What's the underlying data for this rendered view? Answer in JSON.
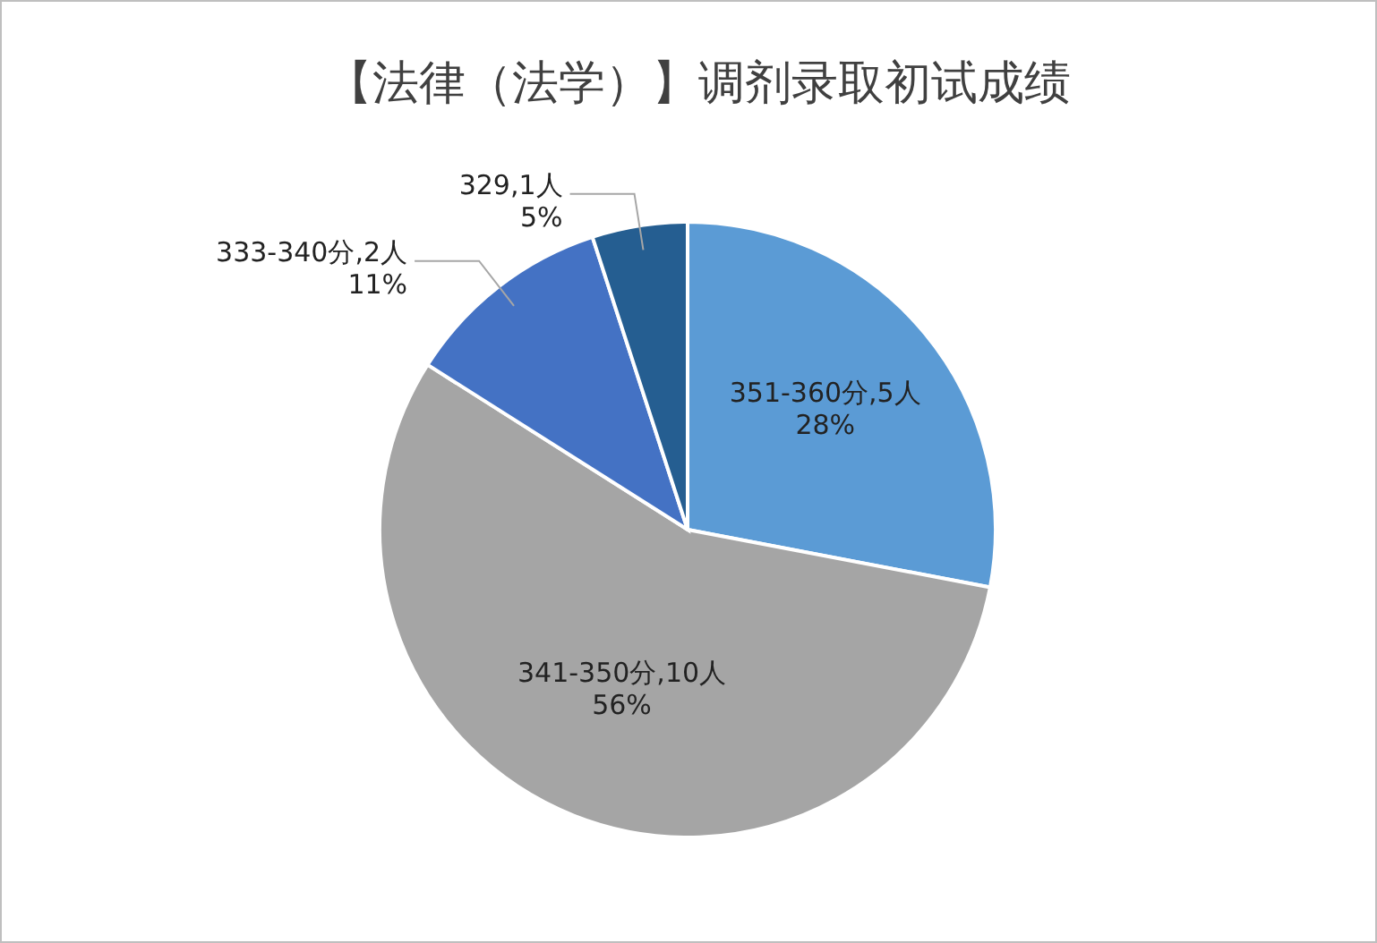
{
  "chart_data": {
    "type": "pie",
    "title": "【法律（法学）】调剂录取初试成绩",
    "categories": [
      "351-360分,5人",
      "341-350分,10人",
      "333-340分,2人",
      "329,1人"
    ],
    "values": [
      28,
      56,
      11,
      5
    ],
    "value_labels": [
      "28%",
      "56%",
      "11%",
      "5%"
    ],
    "colors": [
      "#5b9bd5",
      "#a5a5a5",
      "#4472c4",
      "#255e91"
    ]
  }
}
